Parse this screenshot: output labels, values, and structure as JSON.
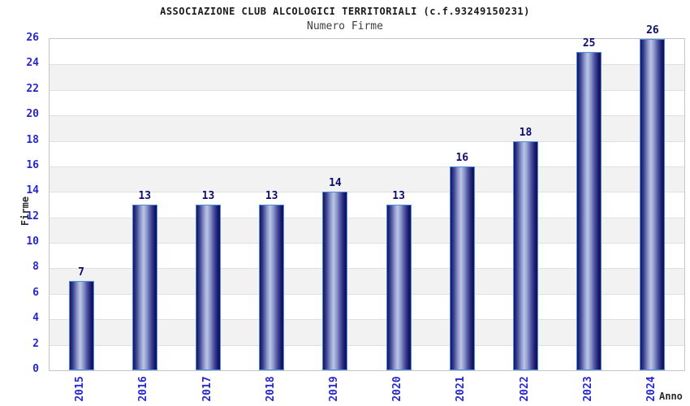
{
  "chart_data": {
    "type": "bar",
    "title": "ASSOCIAZIONE CLUB ALCOLOGICI TERRITORIALI (c.f.93249150231)",
    "subtitle": "Numero Firme",
    "xlabel": "Anno",
    "ylabel": "Firme",
    "categories": [
      "2015",
      "2016",
      "2017",
      "2018",
      "2019",
      "2020",
      "2021",
      "2022",
      "2023",
      "2024"
    ],
    "values": [
      7,
      13,
      13,
      13,
      14,
      13,
      16,
      18,
      25,
      26
    ],
    "ylim": [
      0,
      26
    ],
    "ytick_step": 2,
    "yticks": [
      0,
      2,
      4,
      6,
      8,
      10,
      12,
      14,
      16,
      18,
      20,
      22,
      24,
      26
    ],
    "grid": "horizontal-bands-alternating",
    "legend": "none",
    "bar_value_labels_shown": true,
    "x_labels_rotated_degrees": 90
  },
  "colors": {
    "title_text": "#1a1a1a",
    "subtitle_text": "#404040",
    "axis_title_text": "#2b2b2b",
    "tick_label": "#2727cf",
    "category_label": "#2727cf",
    "data_label": "#0d0d6e",
    "plot_border": "#c6c6c6",
    "gridline": "#e0e0e0",
    "band_white": "#ffffff",
    "band_gray": "#f2f2f2",
    "bar_border": "#4a8fe2",
    "bar_gradient": [
      "#13135e",
      "#3c4292",
      "#8591c4",
      "#bcc5e6",
      "#8d98c9",
      "#4b51a0",
      "#1b1b70",
      "#101050"
    ],
    "bar_gradient_pos": [
      "0%",
      "14%",
      "30%",
      "44%",
      "58%",
      "74%",
      "90%",
      "100%"
    ]
  }
}
